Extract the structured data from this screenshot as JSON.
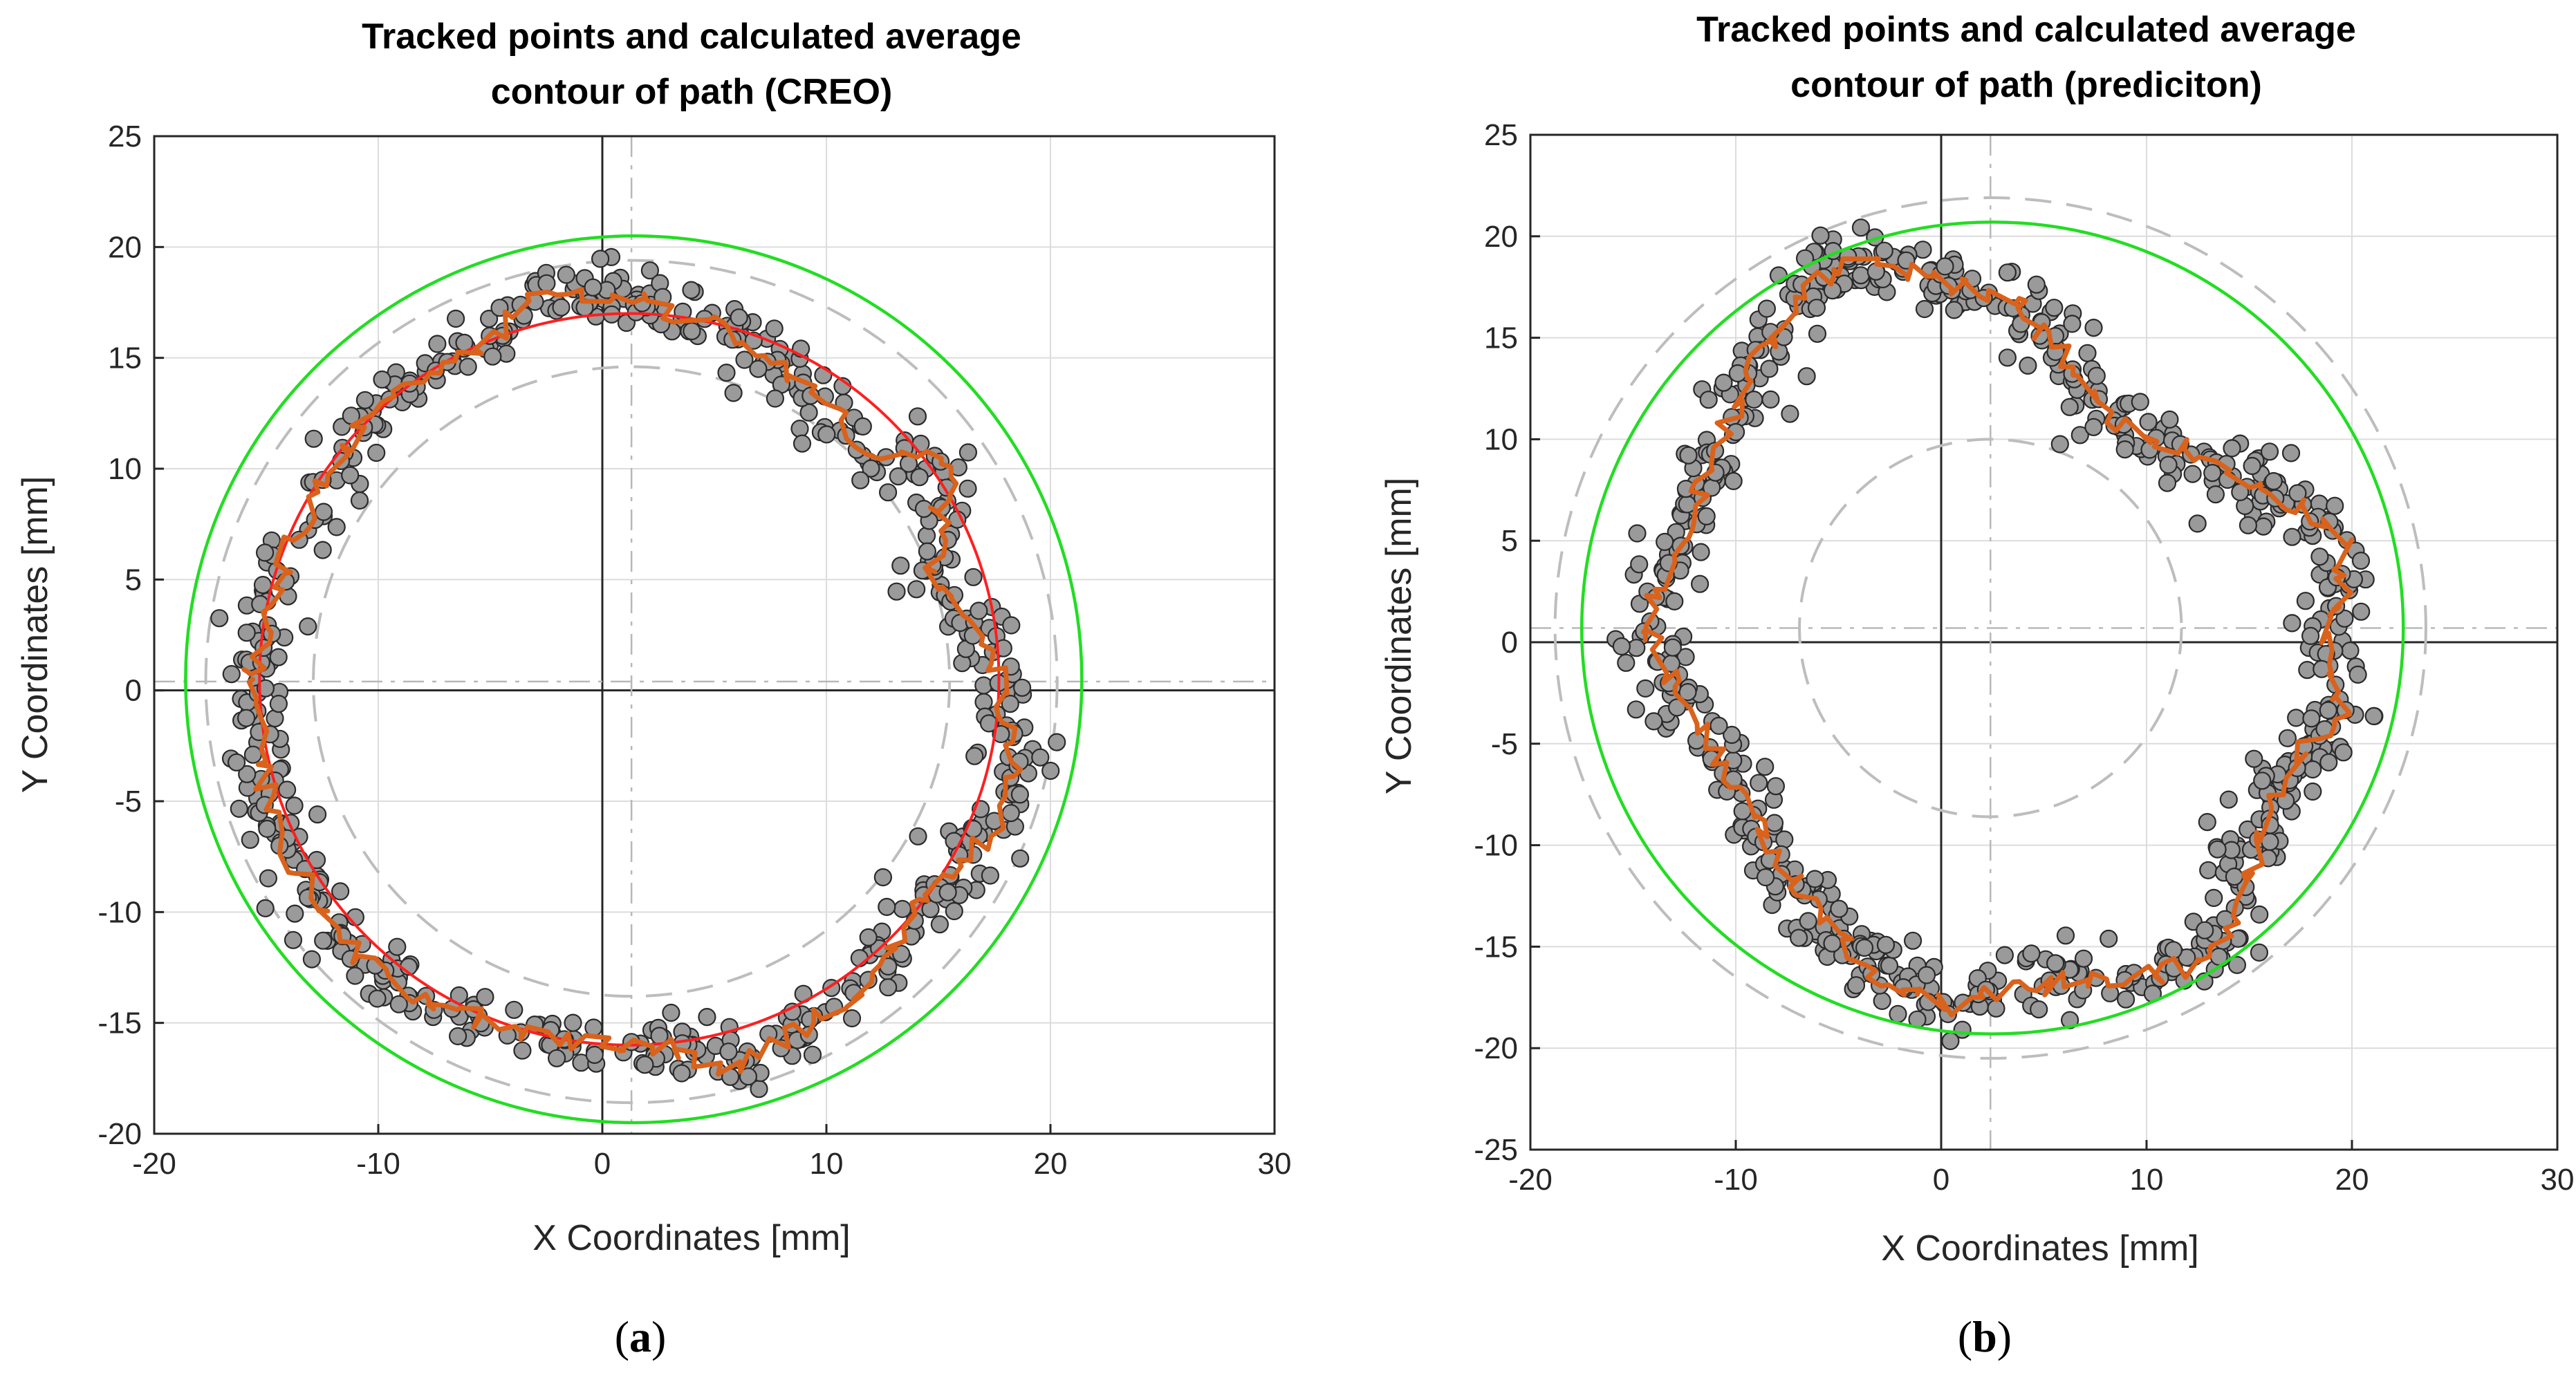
{
  "chart_data": [
    {
      "type": "scatter",
      "panel": "a",
      "title_lines": [
        "Tracked points and calculated average",
        "contour of path (CREO)"
      ],
      "xlabel": "X Coordinates [mm]",
      "ylabel": "Y Coordinates [mm]",
      "xlim": [
        -20,
        30
      ],
      "ylim": [
        -20,
        25
      ],
      "xticks": [
        -20,
        -10,
        0,
        10,
        20,
        30
      ],
      "yticks": [
        -20,
        -15,
        -10,
        -5,
        0,
        5,
        10,
        15,
        20,
        25
      ],
      "grid": true,
      "caption_letter": "a",
      "center_cross": [
        1.3,
        0.4
      ],
      "circles": [
        {
          "name": "outer limit",
          "color": "#22dd22",
          "style": "solid",
          "cx": 1.4,
          "cy": 0.5,
          "r": 20.0
        },
        {
          "name": "outer boundary",
          "color": "#bdbdbd",
          "style": "dashed",
          "cx": 1.3,
          "cy": 0.4,
          "r": 19.0
        },
        {
          "name": "inner boundary",
          "color": "#bdbdbd",
          "style": "dashed",
          "cx": 1.3,
          "cy": 0.4,
          "r": 14.2
        },
        {
          "name": "fitted circle",
          "color": "#ff1f1f",
          "style": "solid",
          "cx": 1.2,
          "cy": 0.5,
          "r": 16.5
        }
      ],
      "contour": [
        [
          -15.6,
          0.5
        ],
        [
          -15.1,
          3.0
        ],
        [
          -14.0,
          6.5
        ],
        [
          -12.0,
          10.0
        ],
        [
          -10.0,
          13.0
        ],
        [
          -7.5,
          14.5
        ],
        [
          -5.0,
          16.0
        ],
        [
          -3.5,
          17.3
        ],
        [
          -2.5,
          17.8
        ],
        [
          -0.5,
          18.0
        ],
        [
          2.0,
          17.6
        ],
        [
          3.5,
          17.0
        ],
        [
          6.0,
          16.0
        ],
        [
          8.5,
          14.0
        ],
        [
          11.0,
          12.0
        ],
        [
          12.5,
          10.4
        ],
        [
          15.8,
          10.4
        ],
        [
          15.0,
          8.0
        ],
        [
          15.2,
          6.5
        ],
        [
          14.5,
          5.5
        ],
        [
          16.0,
          3.8
        ],
        [
          17.5,
          1.5
        ],
        [
          18.0,
          -1.5
        ],
        [
          18.5,
          -3.5
        ],
        [
          18.0,
          -6.0
        ],
        [
          16.5,
          -7.0
        ],
        [
          15.0,
          -8.5
        ],
        [
          13.5,
          -10.5
        ],
        [
          11.5,
          -13.5
        ],
        [
          9.5,
          -15.0
        ],
        [
          7.5,
          -16.0
        ],
        [
          6.0,
          -17.0
        ],
        [
          4.0,
          -16.5
        ],
        [
          2.5,
          -16.0
        ],
        [
          0.8,
          -16.2
        ],
        [
          -1.0,
          -15.8
        ],
        [
          -3.0,
          -15.6
        ],
        [
          -5.0,
          -15.0
        ],
        [
          -7.0,
          -14.5
        ],
        [
          -9.0,
          -13.5
        ],
        [
          -11.0,
          -12.0
        ],
        [
          -12.5,
          -10.0
        ],
        [
          -14.0,
          -7.5
        ],
        [
          -15.0,
          -4.5
        ],
        [
          -15.5,
          -1.5
        ],
        [
          -15.6,
          0.5
        ]
      ],
      "noise": 1.0,
      "points_count": 620
    },
    {
      "type": "scatter",
      "panel": "b",
      "title_lines": [
        "Tracked points and calculated average",
        "contour of path (prediciton)"
      ],
      "xlabel": "X Coordinates [mm]",
      "ylabel": "Y Coordinates [mm]",
      "xlim": [
        -20,
        30
      ],
      "ylim": [
        -25,
        25
      ],
      "xticks": [
        -20,
        -10,
        0,
        10,
        20,
        30
      ],
      "yticks": [
        -25,
        -20,
        -15,
        -10,
        -5,
        0,
        5,
        10,
        15,
        20,
        25
      ],
      "grid": true,
      "caption_letter": "b",
      "center_cross": [
        2.4,
        0.7
      ],
      "circles": [
        {
          "name": "outer limit",
          "color": "#22dd22",
          "style": "solid",
          "cx": 2.5,
          "cy": 0.7,
          "r": 20.0
        },
        {
          "name": "outer boundary",
          "color": "#bdbdbd",
          "style": "dashed",
          "cx": 2.4,
          "cy": 0.7,
          "r": 21.2
        },
        {
          "name": "inner boundary",
          "color": "#bdbdbd",
          "style": "dashed",
          "cx": 2.4,
          "cy": 0.7,
          "r": 9.3
        }
      ],
      "contour": [
        [
          -14.5,
          0.5
        ],
        [
          -13.0,
          4.0
        ],
        [
          -11.5,
          8.0
        ],
        [
          -10.0,
          11.5
        ],
        [
          -8.5,
          14.5
        ],
        [
          -7.0,
          16.5
        ],
        [
          -5.5,
          18.5
        ],
        [
          -3.0,
          18.7
        ],
        [
          -1.0,
          18.0
        ],
        [
          1.5,
          17.5
        ],
        [
          3.5,
          17.0
        ],
        [
          5.0,
          15.5
        ],
        [
          6.5,
          13.5
        ],
        [
          8.0,
          11.0
        ],
        [
          10.5,
          10.0
        ],
        [
          13.0,
          9.0
        ],
        [
          15.5,
          7.5
        ],
        [
          17.5,
          6.5
        ],
        [
          19.5,
          5.5
        ],
        [
          19.5,
          1.5
        ],
        [
          18.5,
          0.0
        ],
        [
          19.5,
          -2.5
        ],
        [
          19.5,
          -4.0
        ],
        [
          17.5,
          -5.5
        ],
        [
          16.0,
          -8.0
        ],
        [
          15.0,
          -11.0
        ],
        [
          14.0,
          -14.0
        ],
        [
          12.0,
          -16.0
        ],
        [
          9.0,
          -16.5
        ],
        [
          6.0,
          -16.8
        ],
        [
          3.0,
          -17.2
        ],
        [
          1.0,
          -18.0
        ],
        [
          -1.0,
          -17.5
        ],
        [
          -3.0,
          -16.5
        ],
        [
          -4.5,
          -15.0
        ],
        [
          -6.5,
          -13.0
        ],
        [
          -8.0,
          -10.5
        ],
        [
          -10.0,
          -7.0
        ],
        [
          -11.5,
          -4.5
        ],
        [
          -13.5,
          -1.5
        ],
        [
          -14.5,
          0.5
        ]
      ],
      "noise": 1.2,
      "points_count": 700
    }
  ]
}
